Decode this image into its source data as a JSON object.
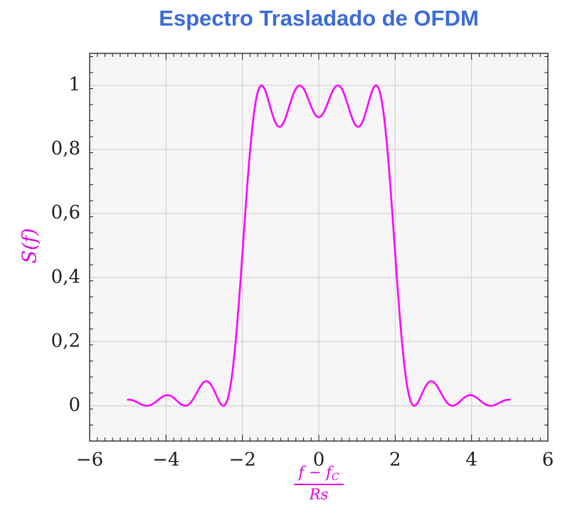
{
  "title": "Espectro Trasladado de OFDM",
  "colors": {
    "title": "#3b6cd6",
    "curve": "#ff00ff",
    "axis_label": "#e000e0",
    "grid": "#cccccc",
    "plot_background": "#f6f6f6",
    "axis_frame": "#1a1a1a",
    "tick_label": "#1f1f1f"
  },
  "chart_data": {
    "type": "line",
    "title": "Espectro Trasladado de OFDM",
    "ylabel": "S(f)",
    "xlabel": {
      "numerator_main": "f − f",
      "numerator_sub": "C",
      "denominator": "Rs"
    },
    "xlim": [
      -6,
      6
    ],
    "ylim": [
      -0.11,
      1.1
    ],
    "x_ticks": [
      -6,
      -4,
      -2,
      0,
      2,
      4,
      6
    ],
    "x_tick_labels": [
      "−6",
      "−4",
      "−2",
      "0",
      "2",
      "4",
      "6"
    ],
    "y_ticks": [
      0,
      0.2,
      0.4,
      0.6,
      0.8,
      1
    ],
    "y_tick_labels": [
      "0",
      "0,2",
      "0,4",
      "0,6",
      "0,8",
      "1"
    ],
    "x_minor_step": 0.2,
    "y_minor_step": 0.05,
    "grid": true,
    "legend": "none",
    "series": [
      {
        "name": "S(f)",
        "model": "S(f) = sum over subcarriers k of sinc^2(f - f_k), sinc(x) = sin(pi x)/(pi x)",
        "subcarriers": [
          -1.5,
          -0.5,
          0.5,
          1.5
        ],
        "x_start": -5,
        "x_end": 5,
        "sample_step": 0.02,
        "color": "#ff00ff",
        "key_points": {
          "peaks": [
            [
              -1.5,
              1.0
            ],
            [
              -0.5,
              1.0
            ],
            [
              0.5,
              1.0
            ],
            [
              1.5,
              1.0
            ]
          ],
          "dips": [
            [
              -1,
              0.872
            ],
            [
              0,
              0.901
            ],
            [
              1,
              0.872
            ]
          ],
          "zeros": [
            -4.5,
            -3.5,
            -2.5,
            2.5,
            3.5,
            4.5
          ],
          "sidelobe_peaks": [
            [
              -3,
              0.075
            ],
            [
              3,
              0.075
            ],
            [
              -4,
              0.033
            ],
            [
              4,
              0.033
            ]
          ],
          "endpoints": [
            [
              -5,
              0.019
            ],
            [
              5,
              0.019
            ]
          ]
        }
      }
    ]
  }
}
